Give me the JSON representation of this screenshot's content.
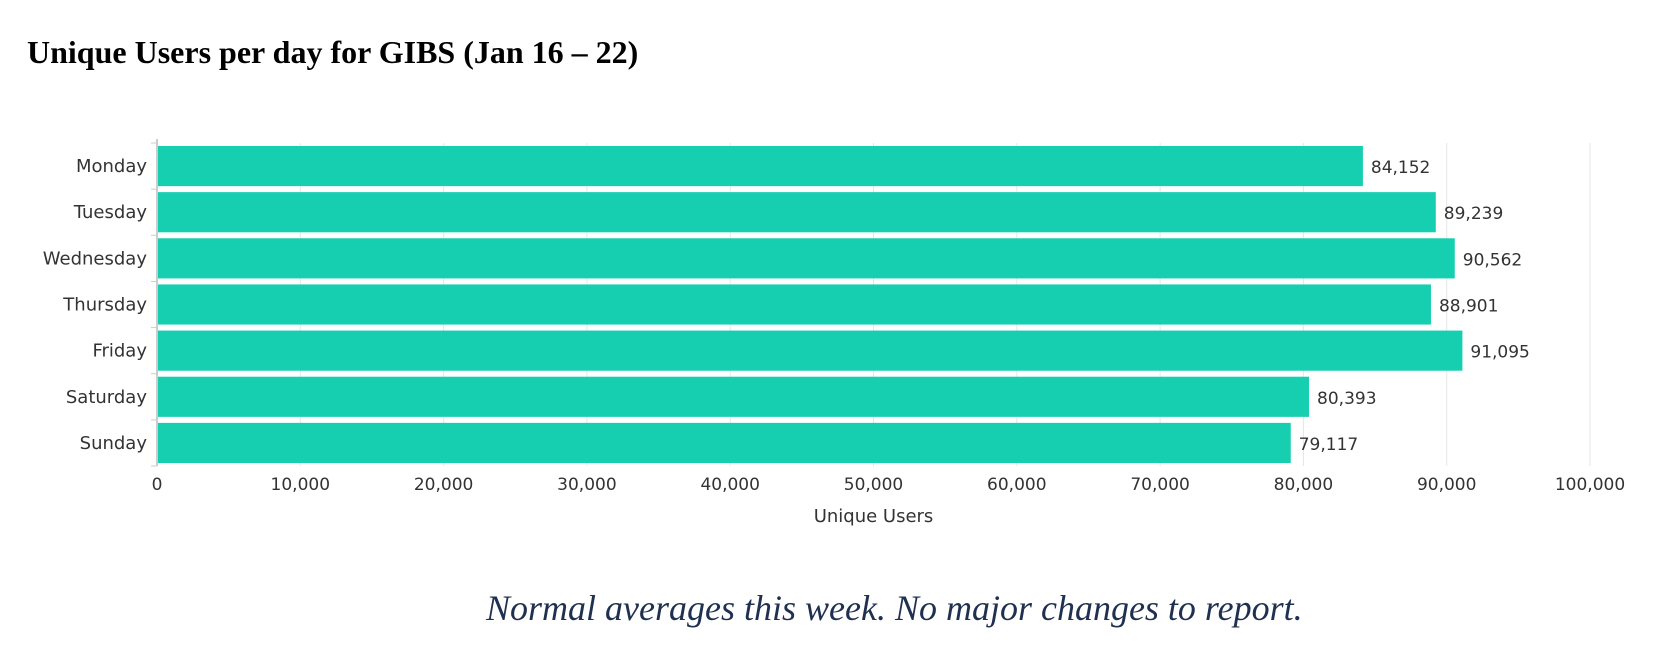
{
  "title": "Unique Users per day for GIBS (Jan 16 – 22)",
  "note": "Normal averages this week.  No major changes to report.",
  "colors": {
    "bar": "#16ceb0",
    "grid": "#e6e6e6",
    "axis": "#cccccc",
    "text": "#333333"
  },
  "chart_data": {
    "type": "bar",
    "orientation": "horizontal",
    "categories": [
      "Monday",
      "Tuesday",
      "Wednesday",
      "Thursday",
      "Friday",
      "Saturday",
      "Sunday"
    ],
    "values": [
      84152,
      89239,
      90562,
      88901,
      91095,
      80393,
      79117
    ],
    "value_labels": [
      "84,152",
      "89,239",
      "90,562",
      "88,901",
      "91,095",
      "80,393",
      "79,117"
    ],
    "xlabel": "Unique Users",
    "ylabel": "",
    "xlim": [
      0,
      100000
    ],
    "ticks": [
      0,
      10000,
      20000,
      30000,
      40000,
      50000,
      60000,
      70000,
      80000,
      90000,
      100000
    ],
    "tick_labels": [
      "0",
      "10,000",
      "20,000",
      "30,000",
      "40,000",
      "50,000",
      "60,000",
      "70,000",
      "80,000",
      "90,000",
      "100,000"
    ],
    "grid": true,
    "legend": "none"
  }
}
